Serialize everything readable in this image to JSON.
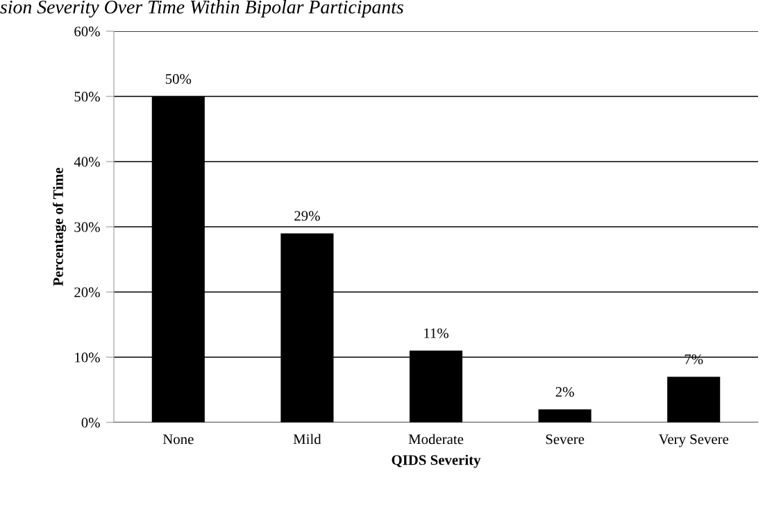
{
  "chart_data": {
    "type": "bar",
    "title": "sion Severity Over Time Within Bipolar Participants",
    "xlabel": "QIDS Severity",
    "ylabel": "Percentage of Time",
    "categories": [
      "None",
      "Mild",
      "Moderate",
      "Severe",
      "Very Severe"
    ],
    "values": [
      50,
      29,
      11,
      2,
      7
    ],
    "color": "#000000",
    "value_labels": [
      "50%",
      "29%",
      "11%",
      "2%",
      "7%"
    ],
    "ylim": [
      0,
      60
    ],
    "yticks": [
      {
        "value": 0,
        "label": "0%"
      },
      {
        "value": 10,
        "label": "10%"
      },
      {
        "value": 20,
        "label": "20%"
      },
      {
        "value": 30,
        "label": "30%"
      },
      {
        "value": 40,
        "label": "40%"
      },
      {
        "value": 50,
        "label": "50%"
      },
      {
        "value": 60,
        "label": "60%"
      }
    ],
    "grid": "y",
    "legend": false
  }
}
